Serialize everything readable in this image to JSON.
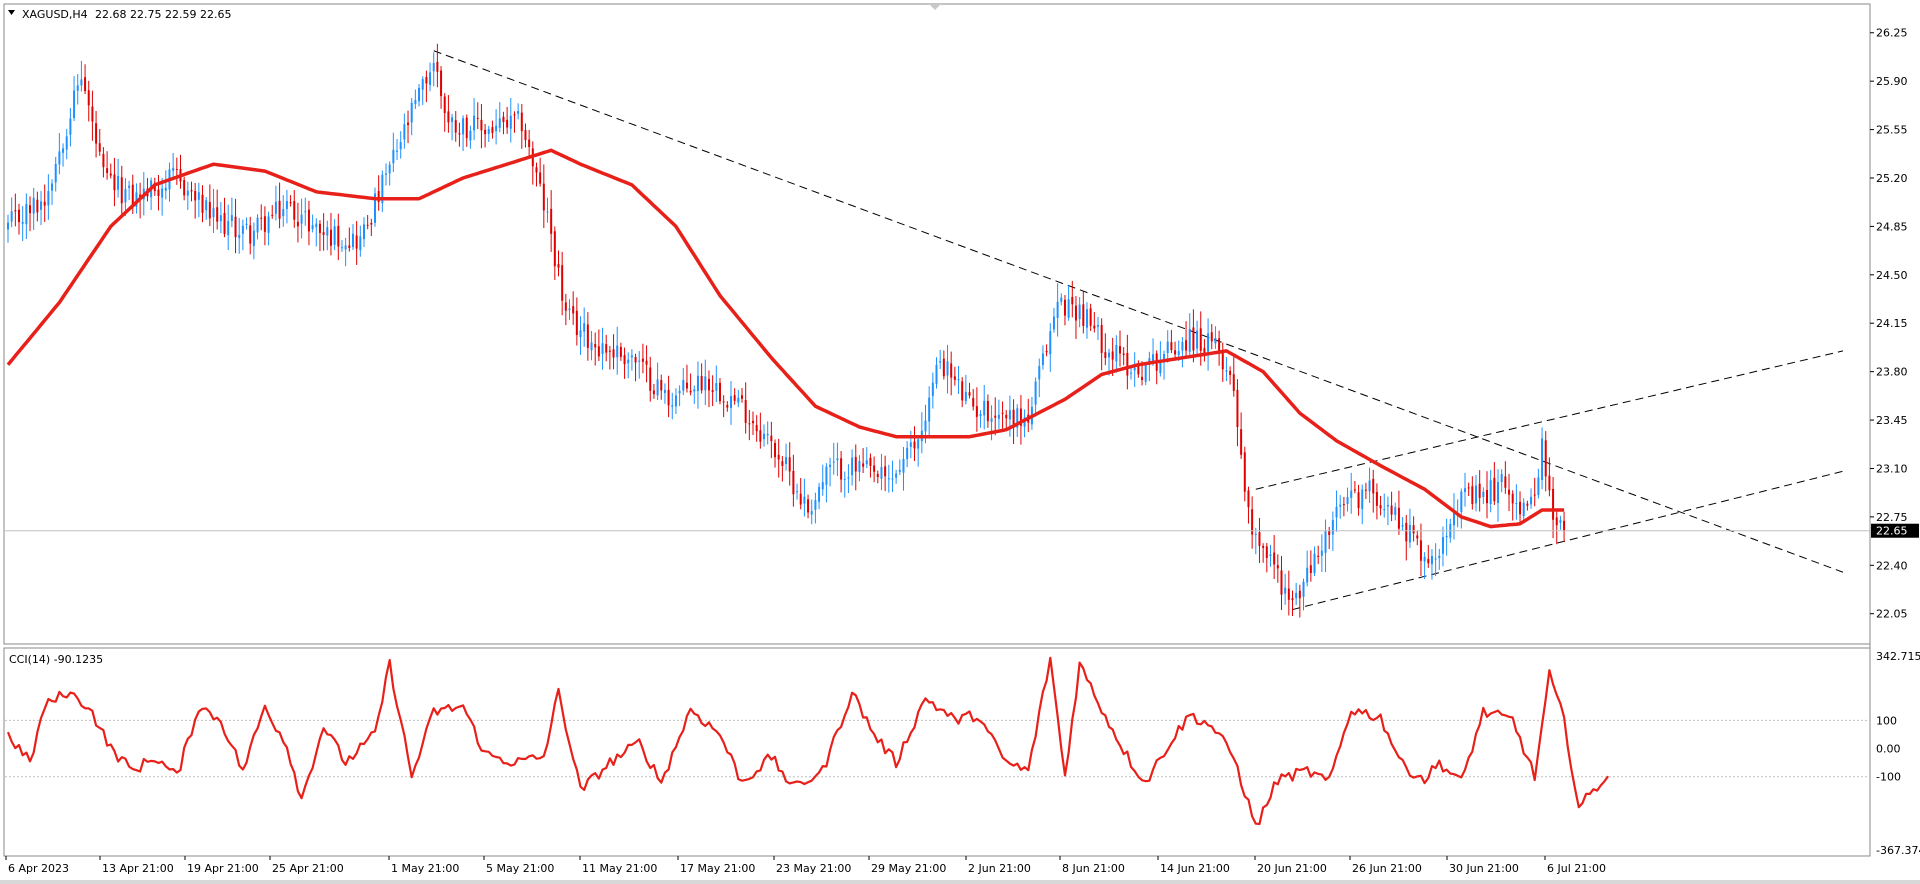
{
  "chart_data": [
    {
      "type": "candlestick",
      "title": "XAGUSD,H4",
      "ohlc_label": "22.68 22.75 22.59 22.65",
      "ylim": [
        21.86,
        26.4
      ],
      "y_ticks": [
        "26.25",
        "25.90",
        "25.55",
        "25.20",
        "24.85",
        "24.50",
        "24.15",
        "23.80",
        "23.45",
        "23.10",
        "22.75",
        "22.40",
        "22.05"
      ],
      "current_price": 22.65,
      "current_price_label": "22.65",
      "up_color": "#1e90ff",
      "down_color": "#e00000",
      "ma_color": "#e8201a",
      "grid": false,
      "x_labels": [
        "6 Apr 2023",
        "13 Apr 21:00",
        "19 Apr 21:00",
        "25 Apr 21:00",
        "1 May 21:00",
        "5 May 21:00",
        "11 May 21:00",
        "17 May 21:00",
        "23 May 21:00",
        "29 May 21:00",
        "2 Jun 21:00",
        "8 Jun 21:00",
        "14 Jun 21:00",
        "20 Jun 21:00",
        "26 Jun 21:00",
        "30 Jun 21:00",
        "6 Jul 21:00"
      ],
      "close_anchors": [
        [
          0,
          24.85
        ],
        [
          10,
          25.05
        ],
        [
          20,
          25.95
        ],
        [
          26,
          25.2
        ],
        [
          34,
          25.05
        ],
        [
          46,
          25.2
        ],
        [
          56,
          24.9
        ],
        [
          66,
          24.8
        ],
        [
          76,
          25.0
        ],
        [
          86,
          24.8
        ],
        [
          96,
          24.75
        ],
        [
          106,
          25.4
        ],
        [
          116,
          26.05
        ],
        [
          120,
          25.6
        ],
        [
          130,
          25.55
        ],
        [
          140,
          25.6
        ],
        [
          148,
          24.8
        ],
        [
          152,
          24.2
        ],
        [
          160,
          24.0
        ],
        [
          170,
          23.9
        ],
        [
          180,
          23.6
        ],
        [
          190,
          23.75
        ],
        [
          200,
          23.55
        ],
        [
          210,
          23.2
        ],
        [
          218,
          22.8
        ],
        [
          224,
          23.1
        ],
        [
          232,
          23.1
        ],
        [
          240,
          23.0
        ],
        [
          248,
          23.3
        ],
        [
          254,
          23.9
        ],
        [
          262,
          23.55
        ],
        [
          270,
          23.5
        ],
        [
          278,
          23.45
        ],
        [
          286,
          24.3
        ],
        [
          292,
          24.25
        ],
        [
          300,
          23.95
        ],
        [
          308,
          23.8
        ],
        [
          316,
          23.95
        ],
        [
          322,
          24.05
        ],
        [
          330,
          23.95
        ],
        [
          334,
          23.7
        ],
        [
          338,
          22.75
        ],
        [
          344,
          22.45
        ],
        [
          350,
          22.1
        ],
        [
          358,
          22.55
        ],
        [
          364,
          22.85
        ],
        [
          372,
          22.95
        ],
        [
          380,
          22.7
        ],
        [
          388,
          22.4
        ],
        [
          394,
          22.85
        ],
        [
          402,
          22.9
        ],
        [
          408,
          23.0
        ],
        [
          414,
          22.75
        ],
        [
          418,
          23.25
        ],
        [
          421,
          22.7
        ],
        [
          424,
          22.65
        ]
      ],
      "ma_anchors": [
        [
          0,
          23.85
        ],
        [
          14,
          24.3
        ],
        [
          28,
          24.85
        ],
        [
          40,
          25.15
        ],
        [
          56,
          25.3
        ],
        [
          70,
          25.25
        ],
        [
          84,
          25.1
        ],
        [
          100,
          25.05
        ],
        [
          112,
          25.05
        ],
        [
          124,
          25.2
        ],
        [
          136,
          25.3
        ],
        [
          148,
          25.4
        ],
        [
          156,
          25.3
        ],
        [
          170,
          25.15
        ],
        [
          182,
          24.85
        ],
        [
          194,
          24.35
        ],
        [
          208,
          23.9
        ],
        [
          220,
          23.55
        ],
        [
          232,
          23.4
        ],
        [
          242,
          23.33
        ],
        [
          262,
          23.33
        ],
        [
          272,
          23.38
        ],
        [
          288,
          23.6
        ],
        [
          298,
          23.78
        ],
        [
          308,
          23.85
        ],
        [
          320,
          23.9
        ],
        [
          332,
          23.95
        ],
        [
          342,
          23.8
        ],
        [
          352,
          23.5
        ],
        [
          362,
          23.3
        ],
        [
          374,
          23.12
        ],
        [
          386,
          22.95
        ],
        [
          396,
          22.75
        ],
        [
          404,
          22.68
        ],
        [
          412,
          22.7
        ],
        [
          418,
          22.8
        ],
        [
          424,
          22.8
        ]
      ],
      "trendlines": [
        {
          "name": "descending-resistance",
          "from": [
            116,
            26.12
          ],
          "to": [
            500,
            22.35
          ]
        },
        {
          "name": "channel-upper",
          "from": [
            340,
            22.95
          ],
          "to": [
            500,
            23.95
          ]
        },
        {
          "name": "channel-lower",
          "from": [
            350,
            22.08
          ],
          "to": [
            500,
            23.08
          ]
        }
      ]
    },
    {
      "type": "line",
      "title": "CCI(14) -90.1235",
      "series": [
        {
          "name": "CCI(14)",
          "color": "#e8201a"
        }
      ],
      "ylim": [
        -367.374,
        342.715
      ],
      "y_ticks": [
        "342.715",
        "100",
        "0.00",
        "-100",
        "-367.374"
      ],
      "levels": [
        100,
        -100
      ],
      "value_anchors": [
        [
          0,
          50
        ],
        [
          6,
          -50
        ],
        [
          10,
          150
        ],
        [
          16,
          200
        ],
        [
          22,
          150
        ],
        [
          28,
          0
        ],
        [
          34,
          -80
        ],
        [
          40,
          -30
        ],
        [
          46,
          -100
        ],
        [
          52,
          150
        ],
        [
          58,
          100
        ],
        [
          64,
          -80
        ],
        [
          70,
          150
        ],
        [
          76,
          10
        ],
        [
          80,
          -180
        ],
        [
          86,
          80
        ],
        [
          92,
          -50
        ],
        [
          100,
          50
        ],
        [
          104,
          300
        ],
        [
          110,
          -100
        ],
        [
          116,
          130
        ],
        [
          124,
          150
        ],
        [
          130,
          -20
        ],
        [
          138,
          -50
        ],
        [
          146,
          -30
        ],
        [
          150,
          200
        ],
        [
          156,
          -150
        ],
        [
          164,
          -50
        ],
        [
          172,
          20
        ],
        [
          178,
          -120
        ],
        [
          186,
          140
        ],
        [
          194,
          50
        ],
        [
          200,
          -120
        ],
        [
          208,
          -30
        ],
        [
          214,
          -140
        ],
        [
          222,
          -80
        ],
        [
          230,
          200
        ],
        [
          236,
          50
        ],
        [
          242,
          -50
        ],
        [
          250,
          180
        ],
        [
          258,
          100
        ],
        [
          264,
          120
        ],
        [
          272,
          -50
        ],
        [
          278,
          -80
        ],
        [
          284,
          320
        ],
        [
          288,
          -100
        ],
        [
          292,
          300
        ],
        [
          300,
          90
        ],
        [
          306,
          -50
        ],
        [
          310,
          -120
        ],
        [
          316,
          10
        ],
        [
          322,
          120
        ],
        [
          328,
          80
        ],
        [
          334,
          -30
        ],
        [
          340,
          -280
        ],
        [
          346,
          -110
        ],
        [
          354,
          -80
        ],
        [
          360,
          -120
        ],
        [
          366,
          140
        ],
        [
          374,
          110
        ],
        [
          380,
          -60
        ],
        [
          386,
          -110
        ],
        [
          390,
          -50
        ],
        [
          396,
          -120
        ],
        [
          402,
          130
        ],
        [
          410,
          100
        ],
        [
          416,
          -100
        ],
        [
          420,
          260
        ],
        [
          424,
          100
        ],
        [
          428,
          -210
        ],
        [
          436,
          -90
        ]
      ]
    }
  ]
}
